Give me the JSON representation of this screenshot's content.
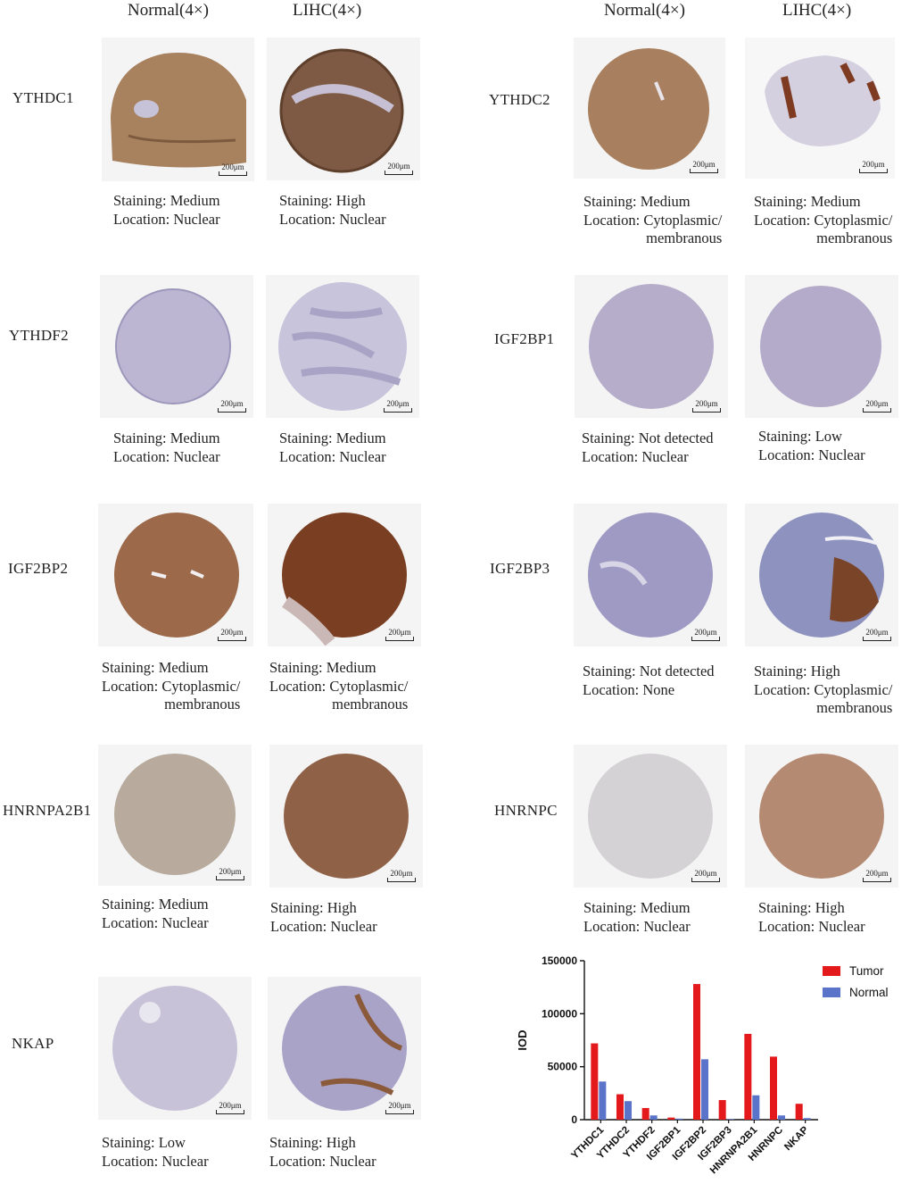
{
  "headers": [
    {
      "id": "left-normal",
      "text": "Normal(4×)"
    },
    {
      "id": "left-lihc",
      "text": "LIHC(4×)"
    },
    {
      "id": "right-normal",
      "text": "Normal(4×)"
    },
    {
      "id": "right-lihc",
      "text": "LIHC(4×)"
    }
  ],
  "scale_label": "200μm",
  "colors": {
    "brown_stain": "#8a5a3a",
    "dark_brown_stain": "#7a3f22",
    "hematoxylin": "#b6b0cf",
    "pale": "#d8d3de",
    "tumor": "#e3191c",
    "normal": "#5a74c9"
  },
  "panels": [
    {
      "gene": "YTHDC1",
      "normal": {
        "staining": "Staining: Medium",
        "location": "Location: Nuclear"
      },
      "lihc": {
        "staining": "Staining: High",
        "location": "Location: Nuclear"
      }
    },
    {
      "gene": "YTHDC2",
      "normal": {
        "staining": "Staining: Medium",
        "location": "Location: Cytoplasmic/",
        "location2": "membranous"
      },
      "lihc": {
        "staining": "Staining: Medium",
        "location": "Location: Cytoplasmic/",
        "location2": "membranous"
      }
    },
    {
      "gene": "YTHDF2",
      "normal": {
        "staining": "Staining: Medium",
        "location": "Location: Nuclear"
      },
      "lihc": {
        "staining": "Staining: Medium",
        "location": "Location: Nuclear"
      }
    },
    {
      "gene": "IGF2BP1",
      "normal": {
        "staining": "Staining: Not detected",
        "location": "Location: Nuclear"
      },
      "lihc": {
        "staining": "Staining: Low",
        "location": "Location: Nuclear"
      }
    },
    {
      "gene": "IGF2BP2",
      "normal": {
        "staining": "Staining: Medium",
        "location": "Location: Cytoplasmic/",
        "location2": "membranous"
      },
      "lihc": {
        "staining": "Staining: Medium",
        "location": "Location: Cytoplasmic/",
        "location2": "membranous"
      }
    },
    {
      "gene": "IGF2BP3",
      "normal": {
        "staining": "Staining: Not detected",
        "location": "Location: None"
      },
      "lihc": {
        "staining": "Staining: High",
        "location": "Location: Cytoplasmic/",
        "location2": "membranous"
      }
    },
    {
      "gene": "HNRNPA2B1",
      "normal": {
        "staining": "Staining: Medium",
        "location": "Location: Nuclear"
      },
      "lihc": {
        "staining": "Staining: High",
        "location": "Location: Nuclear"
      }
    },
    {
      "gene": "HNRNPC",
      "normal": {
        "staining": "Staining: Medium",
        "location": "Location: Nuclear"
      },
      "lihc": {
        "staining": "Staining: High",
        "location": "Location: Nuclear"
      }
    },
    {
      "gene": "NKAP",
      "normal": {
        "staining": "Staining: Low",
        "location": "Location: Nuclear"
      },
      "lihc": {
        "staining": "Staining: High",
        "location": "Location: Nuclear"
      }
    }
  ],
  "chart_data": {
    "type": "bar",
    "ylabel": "IOD",
    "ylim": [
      0,
      150000
    ],
    "yticks": [
      0,
      50000,
      100000,
      150000
    ],
    "categories": [
      "YTHDC1",
      "YTHDC2",
      "YTHDF2",
      "IGF2BP1",
      "IGF2BP2",
      "IGF2BP3",
      "HNRNPA2B1",
      "HNRNPC",
      "NKAP"
    ],
    "series": [
      {
        "name": "Tumor",
        "color": "#e3191c",
        "values": [
          72000,
          24000,
          11000,
          2000,
          128000,
          18500,
          81000,
          59500,
          15000
        ]
      },
      {
        "name": "Normal",
        "color": "#5a74c9",
        "values": [
          36000,
          17500,
          4000,
          1000,
          57000,
          500,
          23000,
          4000,
          1500
        ]
      }
    ],
    "legend": "top-right"
  }
}
